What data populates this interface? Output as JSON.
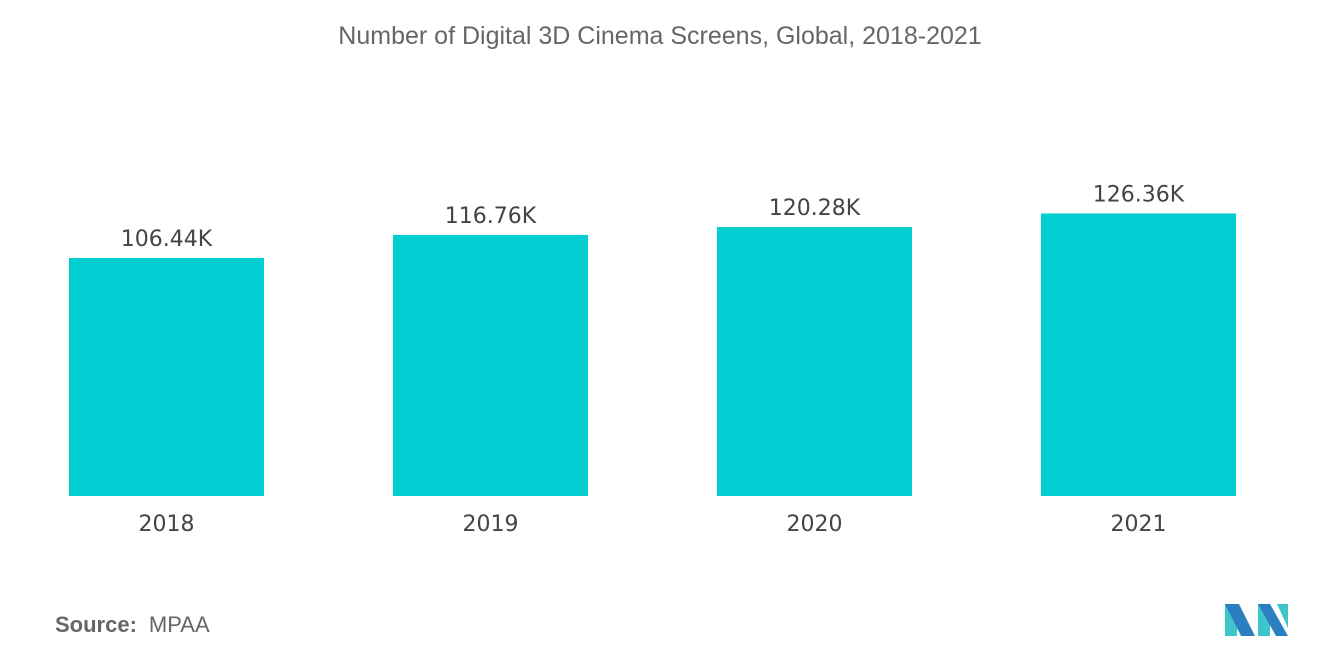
{
  "chart_data": {
    "type": "bar",
    "title": "Number of Digital 3D Cinema Screens, Global, 2018-2021",
    "categories": [
      "2018",
      "2019",
      "2020",
      "2021"
    ],
    "values": [
      106.44,
      116.76,
      120.28,
      126.36
    ],
    "data_labels": [
      "106.44K",
      "116.76K",
      "120.28K",
      "126.36K"
    ],
    "unit": "K",
    "xlabel": "",
    "ylabel": "",
    "ylim": [
      0,
      130
    ],
    "grid": false,
    "bar_color": "#00CED1"
  },
  "source": {
    "label": "Source:",
    "value": "MPAA"
  },
  "logo": {
    "colors": [
      "#2B7FC0",
      "#3CC6CC"
    ]
  }
}
